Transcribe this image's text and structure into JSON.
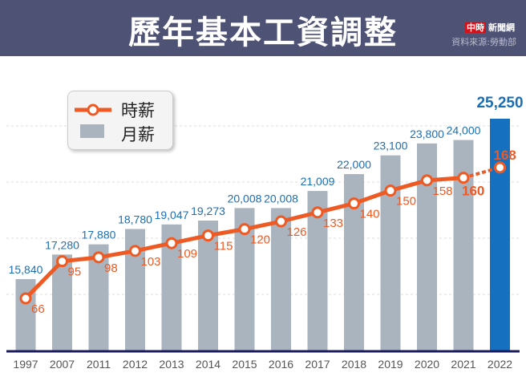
{
  "header": {
    "title": "歷年基本工資調整",
    "brand_red": "中時",
    "brand": "新聞網",
    "source": "資料來源:勞動部"
  },
  "colors": {
    "bar": "#a9b4bf",
    "bar_highlight": "#1670c0",
    "line": "#ee5a24",
    "bar_label": "#1a6fb3",
    "axis": "#1b1b5e",
    "header": "#4e5275"
  },
  "chart_data": {
    "type": "bar+line",
    "categories": [
      "1997",
      "2007",
      "2011",
      "2012",
      "2013",
      "2014",
      "2015",
      "2016",
      "2017",
      "2018",
      "2019",
      "2020",
      "2021",
      "2022"
    ],
    "series": [
      {
        "name": "月薪",
        "type": "bar",
        "values": [
          15840,
          17280,
          17880,
          18780,
          19047,
          19273,
          20008,
          20008,
          21009,
          22000,
          23100,
          23800,
          24000,
          25250
        ],
        "labels": [
          "15,840",
          "17,280",
          "17,880",
          "18,780",
          "19,047",
          "19,273",
          "20,008",
          "20,008",
          "21,009",
          "22,000",
          "23,100",
          "23,800",
          "24,000",
          "25,250"
        ]
      },
      {
        "name": "時薪",
        "type": "line",
        "values": [
          66,
          95,
          98,
          103,
          109,
          115,
          120,
          126,
          133,
          140,
          150,
          158,
          160,
          168
        ],
        "labels": [
          "66",
          "95",
          "98",
          "103",
          "109",
          "115",
          "120",
          "126",
          "133",
          "140",
          "150",
          "158",
          "160",
          "168"
        ]
      }
    ],
    "highlight_category": "2022",
    "grid": "dashed horizontal",
    "legend": {
      "placement": "top-left",
      "items": [
        "時薪",
        "月薪"
      ]
    }
  }
}
